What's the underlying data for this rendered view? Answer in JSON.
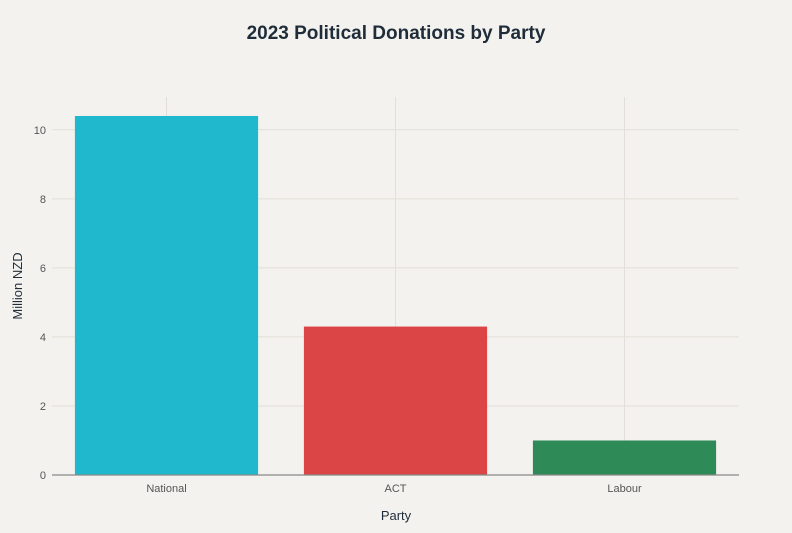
{
  "chart_data": {
    "type": "bar",
    "title": "2023 Political Donations by Party",
    "xlabel": "Party",
    "ylabel": "Million NZD",
    "categories": [
      "National",
      "ACT",
      "Labour"
    ],
    "values": [
      10.4,
      4.3,
      1.0
    ],
    "colors": [
      "#1fb8cd",
      "#db4545",
      "#2e8b57"
    ],
    "yticks": [
      0,
      2,
      4,
      6,
      8,
      10
    ],
    "ylim": [
      0,
      10.95
    ],
    "grid": true,
    "legend": "none"
  }
}
